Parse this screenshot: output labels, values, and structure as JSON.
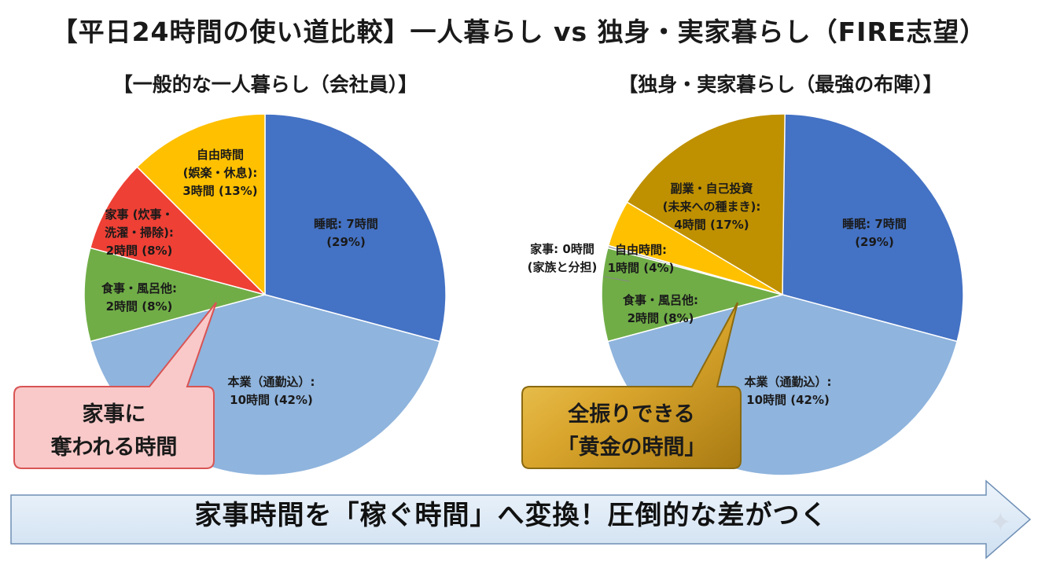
{
  "main_title": "【平日24時間の使い道比較】一人暮らし vs 独身・実家暮らし（FIRE志望）",
  "banner": "家事時間を「稼ぐ時間」へ変換！圧倒的な差がつく",
  "chart_data": [
    {
      "type": "pie",
      "title": "【一般的な一人暮らし（会社員）】",
      "slices": [
        {
          "label": [
            "睡眠: 7時間",
            "(29%)"
          ],
          "value": 7,
          "color": "#4472c4"
        },
        {
          "label": [
            "本業（通勤込）:",
            "10時間 (42%)"
          ],
          "value": 10,
          "color": "#8fb4dd"
        },
        {
          "label": [
            "食事・風呂他:",
            "2時間 (8%)"
          ],
          "value": 2,
          "color": "#70ad47"
        },
        {
          "label": [
            "家事 (炊事・",
            "洗濯・掃除):",
            "2時間 (8%)"
          ],
          "value": 2,
          "color": "#ee4035"
        },
        {
          "label": [
            "自由時間",
            "(娯楽・休息):",
            "3時間 (13%)"
          ],
          "value": 3,
          "color": "#ffc000"
        }
      ],
      "callout": {
        "lines": [
          "家事に",
          "奪われる時間"
        ],
        "fill": "#f9c9c9",
        "stroke": "#d95454"
      }
    },
    {
      "type": "pie",
      "title": "【独身・実家暮らし（最強の布陣）】",
      "slices": [
        {
          "label": [
            "睡眠: 7時間",
            "(29%)"
          ],
          "value": 7,
          "color": "#4472c4"
        },
        {
          "label": [
            "本業（通勤込）:",
            "10時間 (42%)"
          ],
          "value": 10,
          "color": "#8fb4dd"
        },
        {
          "label": [
            "食事・風呂他:",
            "2時間 (8%)"
          ],
          "value": 2,
          "color": "#70ad47"
        },
        {
          "label": [
            "家事: 0時間",
            "(家族と分担)"
          ],
          "value": 0,
          "color": "#a6a6a6"
        },
        {
          "label": [
            "自由時間:",
            "1時間 (4%)"
          ],
          "value": 1,
          "color": "#ffc000"
        },
        {
          "label": [
            "副業・自己投資",
            "(未来への種まき):",
            "4時間 (17%)"
          ],
          "value": 4,
          "color": "#bf9000"
        }
      ],
      "callout": {
        "lines": [
          "全振りできる",
          "「黄金の時間」"
        ],
        "fill": "#e0b43a",
        "stroke": "#8a6a10"
      }
    }
  ]
}
